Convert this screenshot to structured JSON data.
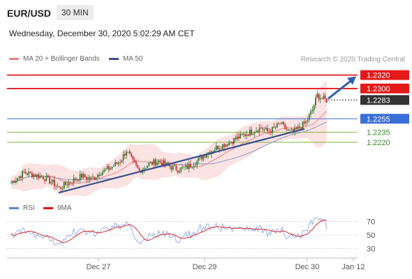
{
  "header": {
    "pair": "EUR/USD",
    "timeframe": "30 MIN"
  },
  "datetime": "Wednesday, December 30, 2020 5:02:29 AM CET",
  "legend": {
    "ma20": {
      "label": "MA 20 + Bollinger Bands",
      "color": "#f08080"
    },
    "ma50": {
      "label": "MA 50",
      "color": "#3a4f8f"
    }
  },
  "credit": "Research © 2020 Trading Central",
  "rsi_legend": {
    "rsi": {
      "label": "RSI",
      "color": "#5b84d8"
    },
    "ma9": {
      "label": "9MA",
      "color": "#e01010"
    }
  },
  "chart_data": [
    {
      "type": "candlestick",
      "title": "EUR/USD",
      "timeframe": "30 MIN",
      "x_ticks": [
        "Dec 27",
        "Dec 29",
        "Dec 30",
        "Jan 12"
      ],
      "price_range": [
        1.2135,
        1.233
      ],
      "current_price": 1.2283,
      "levels": [
        {
          "label": "1.2320",
          "value": 1.232,
          "kind": "resistance",
          "color": "#e41a1a"
        },
        {
          "label": "1.2300",
          "value": 1.23,
          "kind": "resistance",
          "color": "#e41a1a"
        },
        {
          "label": "1.2283",
          "value": 1.2283,
          "kind": "current",
          "color": "#333333"
        },
        {
          "label": "1.2255",
          "value": 1.2255,
          "kind": "pivot",
          "color": "#3a6fd8"
        },
        {
          "label": "1.2235",
          "value": 1.2235,
          "kind": "support",
          "color": "#7cb342"
        },
        {
          "label": "1.2220",
          "value": 1.222,
          "kind": "support",
          "color": "#7cb342"
        }
      ],
      "series": [
        {
          "name": "MA 20 + Bollinger Bands",
          "color": "#f08080"
        },
        {
          "name": "MA 50",
          "color": "#3a4f8f"
        }
      ],
      "trendline": {
        "from": 1.2145,
        "to": 1.224
      },
      "projection": {
        "from": 1.2285,
        "to": 1.232
      }
    },
    {
      "type": "line",
      "title": "RSI",
      "y_ticks": [
        70,
        50,
        30
      ],
      "ylim": [
        20,
        80
      ],
      "series": [
        {
          "name": "RSI",
          "color": "#5b84d8"
        },
        {
          "name": "9MA",
          "color": "#e01010"
        }
      ]
    }
  ]
}
